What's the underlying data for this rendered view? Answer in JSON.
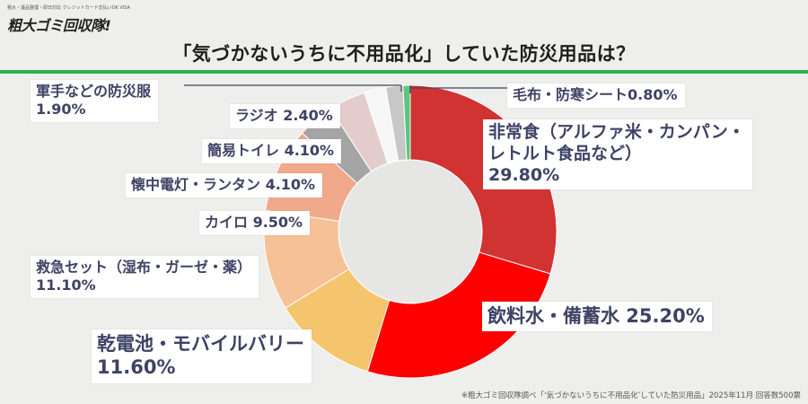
{
  "brand": {
    "tagline": "粗大・遺品整理・即日対応 クレジットカード支払いOK VISA",
    "name": "粗大ゴミ回収隊!"
  },
  "title": "「気づかないうちに不用品化」していた防災用品は？",
  "footer_note": "※粗大ゴミ回収隊調べ「‘気づかないうちに不用品化’していた防災用品」2025年11月 回答数500票",
  "chart_data": {
    "type": "pie",
    "donut": true,
    "order": "clockwise-from-top",
    "slices": [
      {
        "label": "非常食（アルファ米・カンパン・レトルト食品など）",
        "label_lines": [
          "非常食（アルファ米・カンパン・",
          "レトルト食品など）"
        ],
        "value": 29.8,
        "value_text": "29.80%",
        "color": "#d13232"
      },
      {
        "label": "飲料水・備蓄水",
        "label_lines": [
          "飲料水・備蓄水 25.20%"
        ],
        "value": 25.2,
        "value_text": "",
        "color": "#ff0000"
      },
      {
        "label": "乾電池・モバイルバリー",
        "label_lines": [
          "乾電池・モバイルバリー"
        ],
        "value": 11.6,
        "value_text": "11.60%",
        "color": "#f5c56e"
      },
      {
        "label": "救急セット（湿布・ガーゼ・薬）",
        "label_lines": [
          "救急セット（湿布・ガーゼ・薬）"
        ],
        "value": 11.1,
        "value_text": "11.10%",
        "color": "#f7c197"
      },
      {
        "label": "カイロ",
        "label_lines": [
          "カイロ 9.50%"
        ],
        "value": 9.5,
        "value_text": "",
        "color": "#f0a98a"
      },
      {
        "label": "懐中電灯・ランタン",
        "label_lines": [
          "懐中電灯・ランタン 4.10%"
        ],
        "value": 4.1,
        "value_text": "",
        "color": "#a5a5a5"
      },
      {
        "label": "簡易トイレ",
        "label_lines": [
          "簡易トイレ 4.10%"
        ],
        "value": 4.1,
        "value_text": "",
        "color": "#e4cccc"
      },
      {
        "label": "ラジオ",
        "label_lines": [
          "ラジオ 2.40%"
        ],
        "value": 2.4,
        "value_text": "",
        "color": "#f6f6f6"
      },
      {
        "label": "軍手などの防災服",
        "label_lines": [
          "軍手などの防災服"
        ],
        "value": 1.9,
        "value_text": "1.90%",
        "color": "#c7c7c7"
      },
      {
        "label": "毛布・防寒シート",
        "label_lines": [
          "毛布・防寒シート0.80%"
        ],
        "value": 0.8,
        "value_text": "",
        "color": "#5cc47e"
      }
    ]
  }
}
